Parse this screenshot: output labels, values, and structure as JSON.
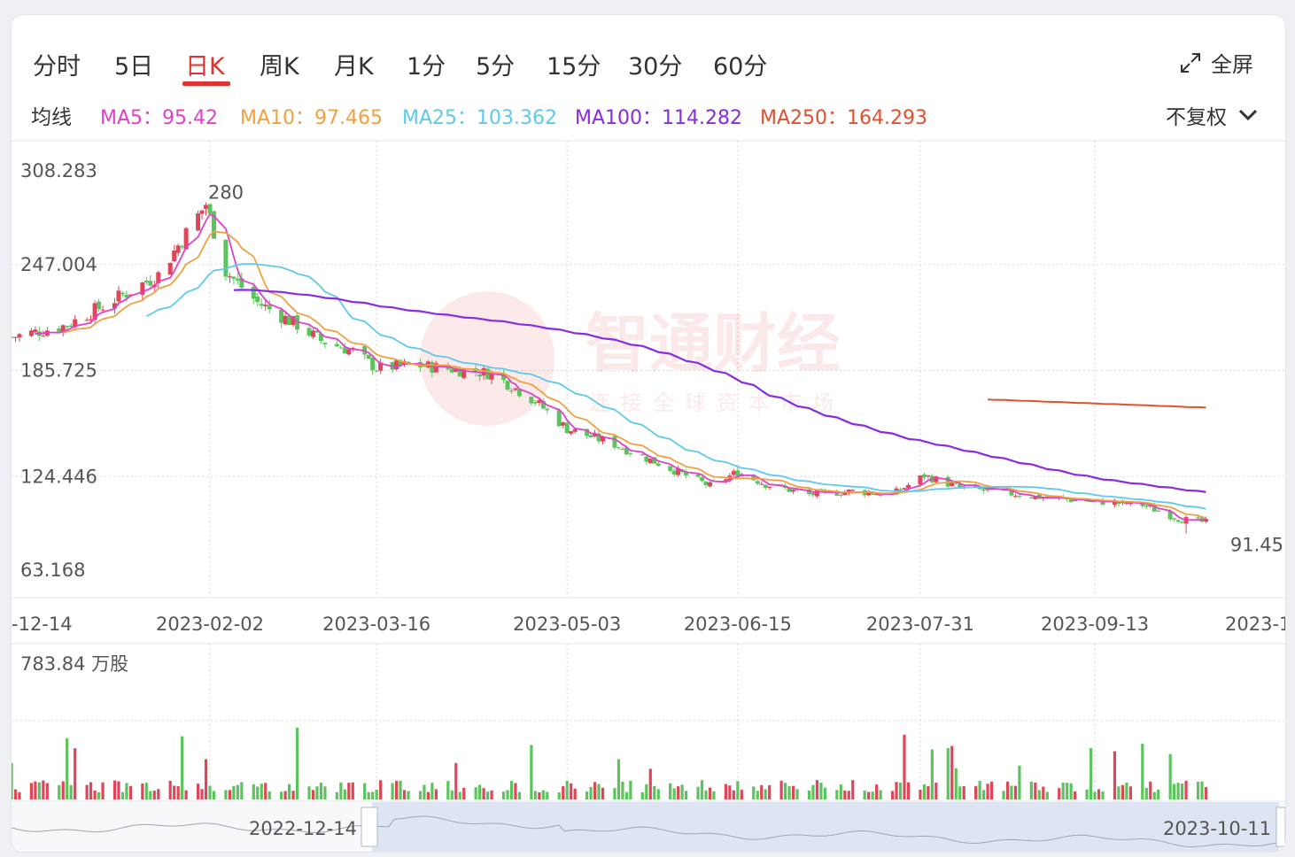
{
  "tabs": [
    "分时",
    "5日",
    "日K",
    "周K",
    "月K",
    "1分",
    "5分",
    "15分",
    "30分",
    "60分"
  ],
  "active_tab": "日K",
  "fullscreen_label": "全屏",
  "ma_title": "均线",
  "ma_items": [
    {
      "label": "MA5：95.42",
      "color": "#e040c8"
    },
    {
      "label": "MA10：97.465",
      "color": "#f0a040"
    },
    {
      "label": "MA25：103.362",
      "color": "#5ec8ee"
    },
    {
      "label": "MA100：114.282",
      "color": "#8a2be2"
    },
    {
      "label": "MA250：164.293",
      "color": "#e05030"
    }
  ],
  "adjust_label": "不复权",
  "watermark": {
    "title": "智通财经",
    "subtitle": "连接全球资本市场"
  },
  "colors": {
    "up": "#e0465a",
    "down": "#5cc45c"
  },
  "chart_data": {
    "type": "candlestick",
    "y_ticks": [
      "308.283",
      "247.004",
      "185.725",
      "124.446",
      "63.168"
    ],
    "ylim": [
      63.168,
      308.283
    ],
    "x_ticks": [
      "2022-12-14",
      "2023-02-02",
      "2023-03-16",
      "2023-05-03",
      "2023-06-15",
      "2023-07-31",
      "2023-09-13",
      "2023-10-11"
    ],
    "x_tick_labels_visible": [
      "-12-14",
      "2023-02-02",
      "2023-03-16",
      "2023-05-03",
      "2023-06-15",
      "2023-07-31",
      "2023-09-13",
      "2023-1"
    ],
    "max_label": "280",
    "min_label": "91.45",
    "price_path": [
      [
        "2022-12-14",
        205
      ],
      [
        "2022-12-28",
        212
      ],
      [
        "2023-01-10",
        228
      ],
      [
        "2023-01-20",
        241
      ],
      [
        "2023-02-01",
        282
      ],
      [
        "2023-02-06",
        243
      ],
      [
        "2023-02-14",
        225
      ],
      [
        "2023-02-24",
        212
      ],
      [
        "2023-03-02",
        203
      ],
      [
        "2023-03-10",
        197
      ],
      [
        "2023-03-16",
        187
      ],
      [
        "2023-03-25",
        189
      ],
      [
        "2023-04-06",
        186
      ],
      [
        "2023-04-14",
        184
      ],
      [
        "2023-04-25",
        168
      ],
      [
        "2023-05-03",
        152
      ],
      [
        "2023-05-15",
        143
      ],
      [
        "2023-05-28",
        130
      ],
      [
        "2023-06-08",
        119
      ],
      [
        "2023-06-15",
        127
      ],
      [
        "2023-06-22",
        120
      ],
      [
        "2023-07-03",
        114
      ],
      [
        "2023-07-14",
        116
      ],
      [
        "2023-07-24",
        114
      ],
      [
        "2023-08-01",
        125
      ],
      [
        "2023-08-10",
        118
      ],
      [
        "2023-08-21",
        115
      ],
      [
        "2023-09-01",
        112
      ],
      [
        "2023-09-13",
        110
      ],
      [
        "2023-09-25",
        108
      ],
      [
        "2023-10-04",
        100
      ],
      [
        "2023-10-11",
        98
      ]
    ],
    "ma_lines": {
      "MA5": 95.42,
      "MA10": 97.465,
      "MA25": 103.362,
      "MA100": 114.282,
      "MA250": 164.293
    },
    "volume_label": "783.84 万股",
    "navigator_labels": [
      "2022-12-14",
      "2023-10-11"
    ]
  }
}
